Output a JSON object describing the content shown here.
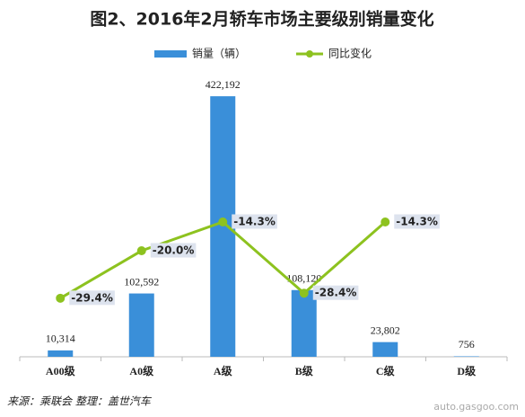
{
  "chart_data": {
    "type": "bar",
    "title": "图2、2016年2月轿车市场主要级别销量变化",
    "source": "来源：乘联会   整理：盖世汽车",
    "watermark": "auto.gasgoo.com",
    "categories": [
      "A00级",
      "A0级",
      "A级",
      "B级",
      "C级",
      "D级"
    ],
    "ylim": [
      0,
      450000
    ],
    "y2lim": [
      -41,
      14
    ],
    "series": [
      {
        "name": "销量（辆）",
        "type": "bar",
        "color": "#3a8fd9",
        "values": [
          10314,
          102592,
          422192,
          108120,
          23802,
          756
        ],
        "value_labels": [
          "10,314",
          "102,592",
          "422,192",
          "108,120",
          "23,802",
          "756"
        ]
      },
      {
        "name": "同比变化",
        "type": "line",
        "axis": "y2",
        "color": "#8dc21f",
        "values": [
          -29.4,
          -20.0,
          -14.3,
          -28.4,
          -14.3,
          null
        ],
        "value_labels": [
          "-29.4%",
          "-20.0%",
          "-14.3%",
          "-28.4%",
          "-14.3%",
          null
        ]
      }
    ]
  }
}
